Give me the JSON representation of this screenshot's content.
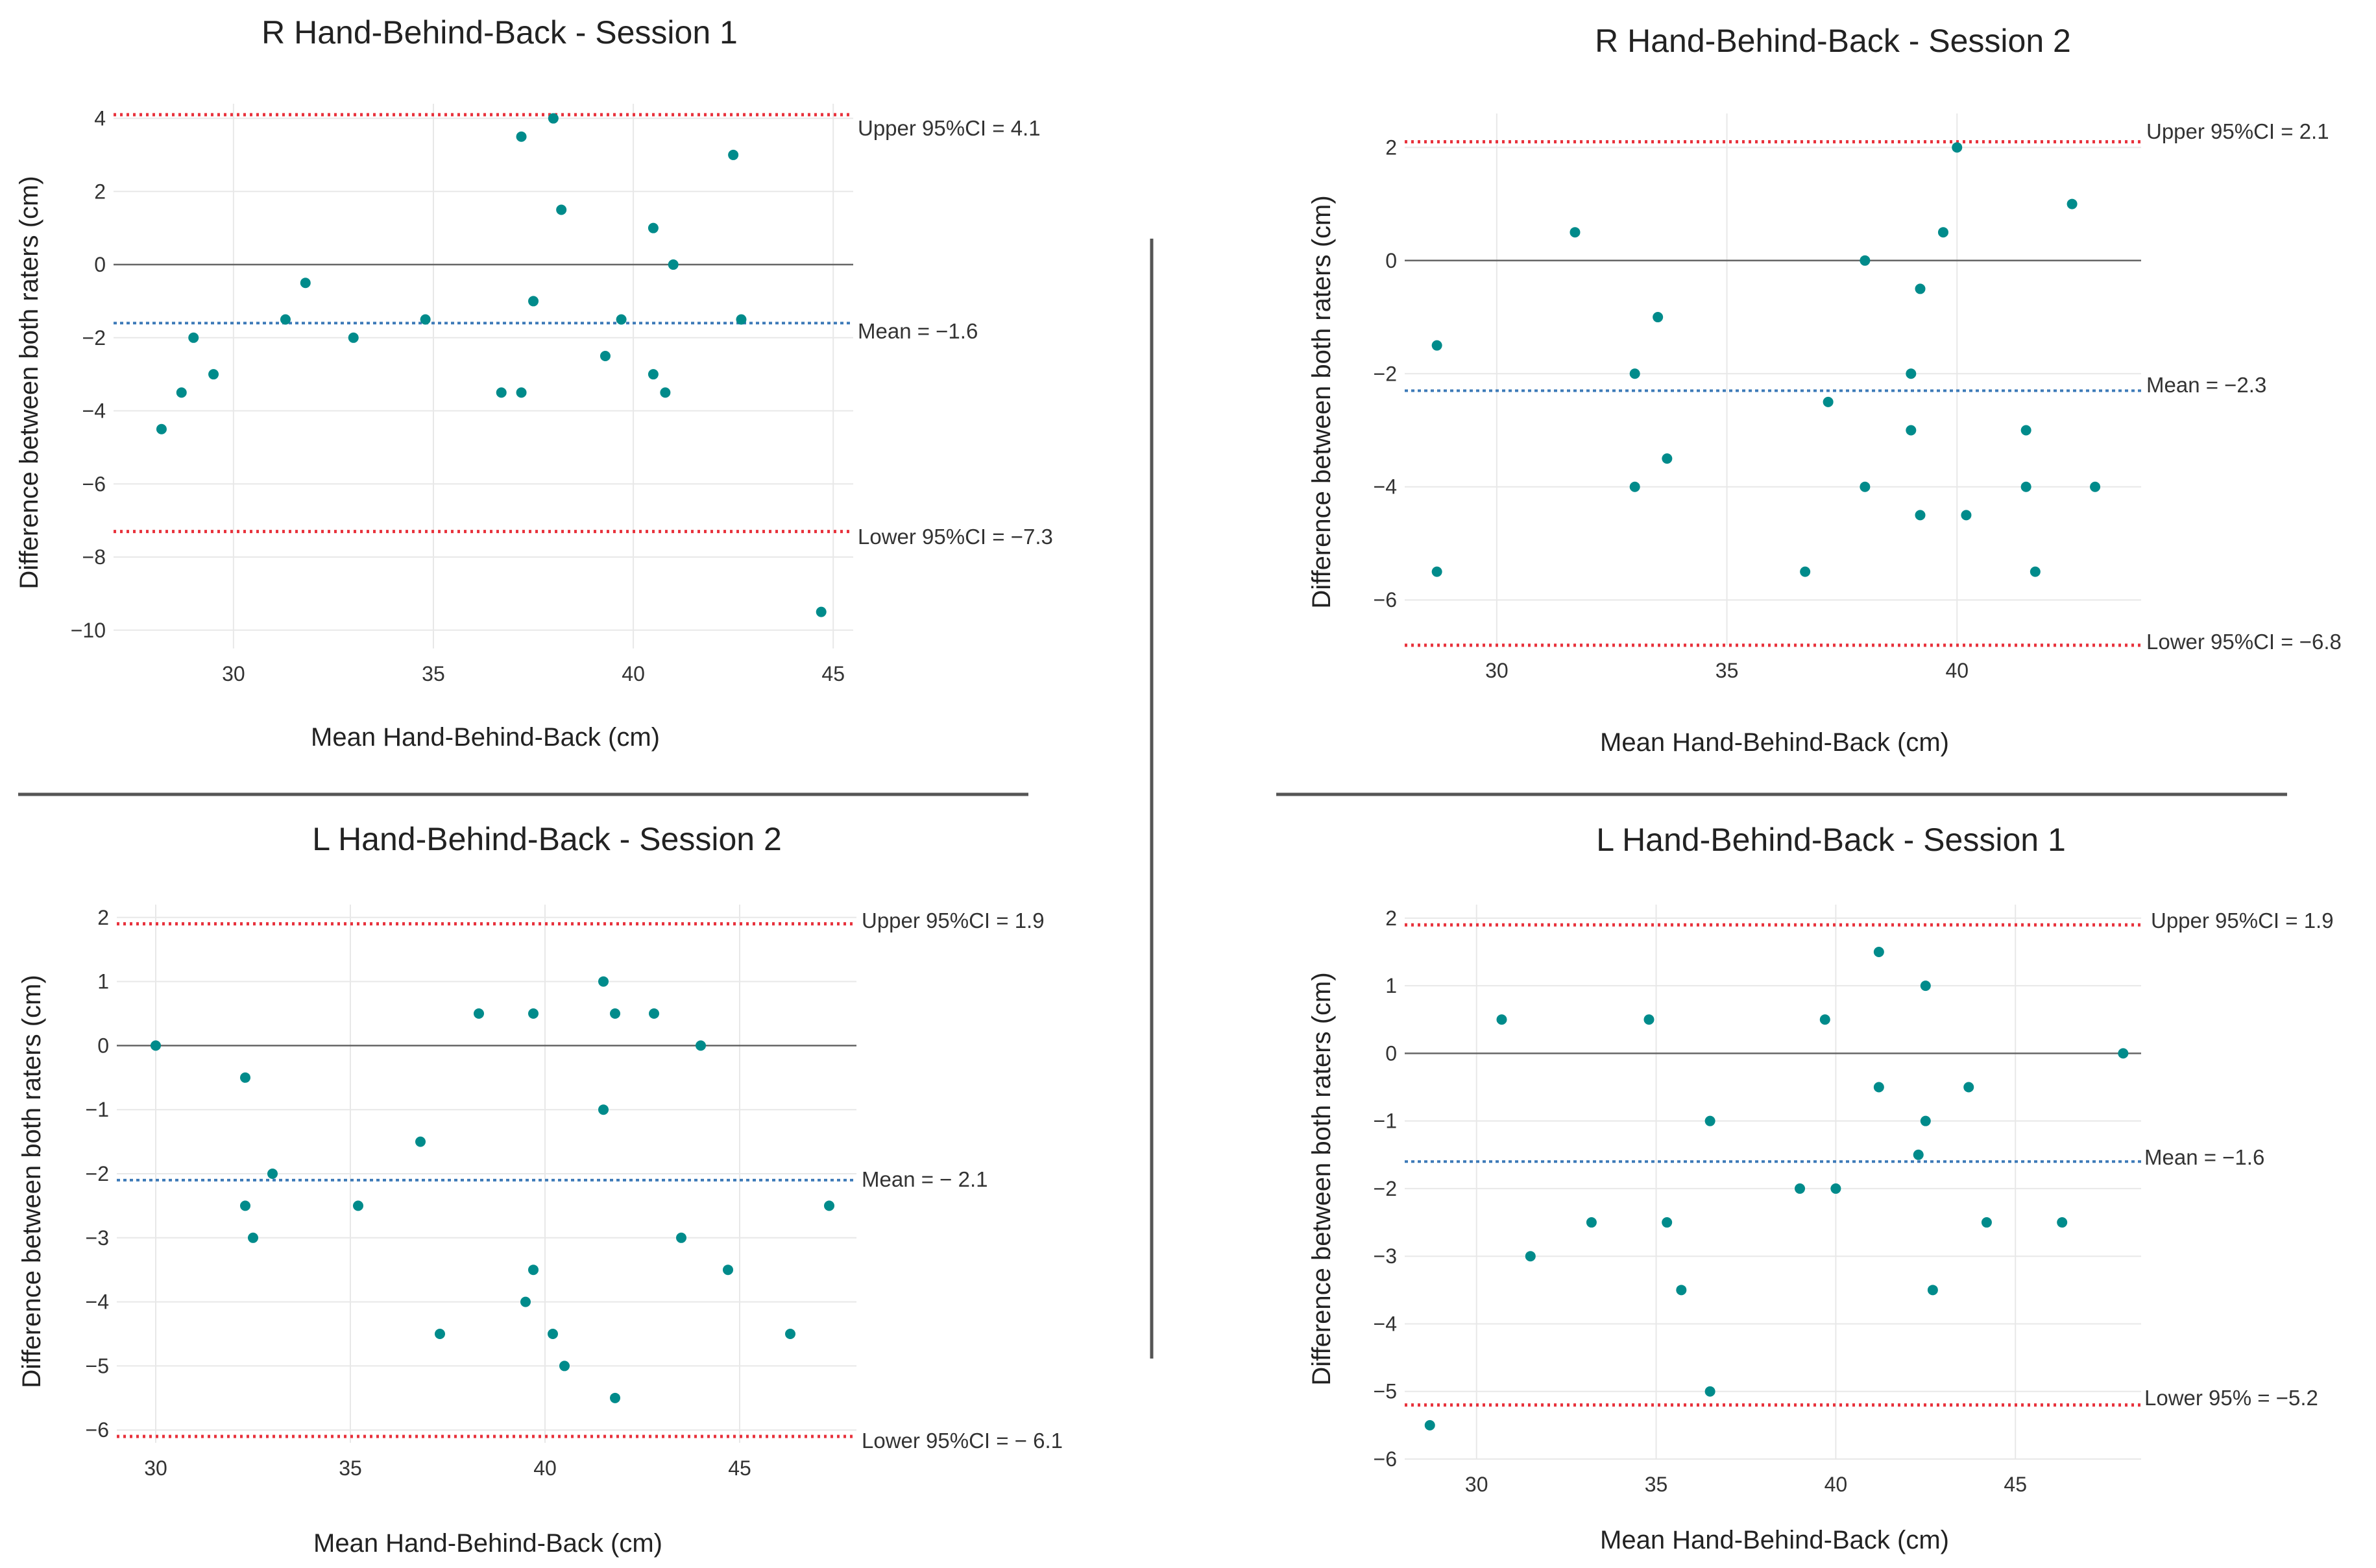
{
  "charts": {
    "rs1": {
      "title": "R Hand-Behind-Back - Session 1",
      "xlabel": "Mean Hand-Behind-Back (cm)",
      "ylabel": "Difference between both raters (cm)",
      "upper_label": "Upper 95%CI = 4.1",
      "mean_label": "Mean = −1.6",
      "lower_label": "Lower 95%CI = −7.3"
    },
    "rs2": {
      "title": "R Hand-Behind-Back - Session 2",
      "xlabel": "Mean Hand-Behind-Back (cm)",
      "ylabel": "Difference between both raters (cm)",
      "upper_label": "Upper 95%CI = 2.1",
      "mean_label": "Mean = −2.3",
      "lower_label": "Lower 95%CI = −6.8"
    },
    "ls2": {
      "title": "L Hand-Behind-Back - Session 2",
      "xlabel": "Mean Hand-Behind-Back (cm)",
      "ylabel": "Difference between both raters (cm)",
      "upper_label": "Upper 95%CI = 1.9",
      "mean_label": "Mean = − 2.1",
      "lower_label": "Lower 95%CI = − 6.1"
    },
    "ls1": {
      "title": "L Hand-Behind-Back - Session 1",
      "xlabel": "Mean Hand-Behind-Back (cm)",
      "ylabel": "Difference between both raters (cm)",
      "upper_label": "Upper 95%CI = 1.9",
      "mean_label": "Mean = −1.6",
      "lower_label": "Lower 95% = −5.2"
    }
  },
  "colors": {
    "points": "#008B8B",
    "upper_lower": "#e8323c",
    "mean": "#3d7ab8",
    "zero": "#666666",
    "grid": "#e8e8e8"
  },
  "chart_data": [
    {
      "id": "rs1",
      "type": "scatter",
      "title": "R Hand-Behind-Back - Session 1",
      "xlabel": "Mean Hand-Behind-Back (cm)",
      "ylabel": "Difference between both raters (cm)",
      "xlim": [
        27,
        45.5
      ],
      "ylim": [
        -10.5,
        4.4
      ],
      "xticks": [
        30,
        35,
        40,
        45
      ],
      "yticks": [
        -10,
        -8,
        -6,
        -4,
        -2,
        0,
        2,
        4
      ],
      "reference_lines": {
        "upper": 4.1,
        "mean": -1.6,
        "lower": -7.3,
        "zero": 0
      },
      "grid": true,
      "points": [
        {
          "x": 28.2,
          "y": -4.5
        },
        {
          "x": 28.7,
          "y": -3.5
        },
        {
          "x": 29.0,
          "y": -2.0
        },
        {
          "x": 29.5,
          "y": -3.0
        },
        {
          "x": 31.3,
          "y": -1.5
        },
        {
          "x": 31.8,
          "y": -0.5
        },
        {
          "x": 33.0,
          "y": -2.0
        },
        {
          "x": 34.8,
          "y": -1.5
        },
        {
          "x": 36.7,
          "y": -3.5
        },
        {
          "x": 37.2,
          "y": 3.5
        },
        {
          "x": 37.2,
          "y": -3.5
        },
        {
          "x": 37.5,
          "y": -1.0
        },
        {
          "x": 38.0,
          "y": 4.0
        },
        {
          "x": 38.2,
          "y": 1.5
        },
        {
          "x": 39.3,
          "y": -2.5
        },
        {
          "x": 39.7,
          "y": -1.5
        },
        {
          "x": 40.5,
          "y": 1.0
        },
        {
          "x": 40.5,
          "y": -3.0
        },
        {
          "x": 40.8,
          "y": -3.5
        },
        {
          "x": 41.0,
          "y": 0.0
        },
        {
          "x": 42.5,
          "y": 3.0
        },
        {
          "x": 42.7,
          "y": -1.5
        },
        {
          "x": 44.7,
          "y": -9.5
        }
      ]
    },
    {
      "id": "rs2",
      "type": "scatter",
      "title": "R Hand-Behind-Back - Session 2",
      "xlabel": "Mean Hand-Behind-Back (cm)",
      "ylabel": "Difference between both raters (cm)",
      "xlim": [
        28,
        44
      ],
      "ylim": [
        -6.8,
        2.6
      ],
      "xticks": [
        30,
        35,
        40
      ],
      "yticks": [
        -6,
        -4,
        -2,
        0,
        2
      ],
      "reference_lines": {
        "upper": 2.1,
        "mean": -2.3,
        "lower": -6.8,
        "zero": 0
      },
      "grid": true,
      "points": [
        {
          "x": 28.7,
          "y": -1.5
        },
        {
          "x": 28.7,
          "y": -5.5
        },
        {
          "x": 31.7,
          "y": 0.5
        },
        {
          "x": 33.0,
          "y": -2.0
        },
        {
          "x": 33.0,
          "y": -4.0
        },
        {
          "x": 33.5,
          "y": -1.0
        },
        {
          "x": 33.7,
          "y": -3.5
        },
        {
          "x": 36.7,
          "y": -5.5
        },
        {
          "x": 37.2,
          "y": -2.5
        },
        {
          "x": 38.0,
          "y": 0.0
        },
        {
          "x": 38.0,
          "y": -4.0
        },
        {
          "x": 39.0,
          "y": -2.0
        },
        {
          "x": 39.0,
          "y": -3.0
        },
        {
          "x": 39.2,
          "y": -0.5
        },
        {
          "x": 39.2,
          "y": -4.5
        },
        {
          "x": 39.7,
          "y": 0.5
        },
        {
          "x": 40.0,
          "y": 2.0
        },
        {
          "x": 40.2,
          "y": -4.5
        },
        {
          "x": 41.5,
          "y": -3.0
        },
        {
          "x": 41.5,
          "y": -4.0
        },
        {
          "x": 41.7,
          "y": -5.5
        },
        {
          "x": 42.5,
          "y": 1.0
        },
        {
          "x": 43.0,
          "y": -4.0
        }
      ]
    },
    {
      "id": "ls2",
      "type": "scatter",
      "title": "L Hand-Behind-Back - Session 2",
      "xlabel": "Mean Hand-Behind-Back (cm)",
      "ylabel": "Difference between both raters (cm)",
      "xlim": [
        29,
        48
      ],
      "ylim": [
        -6.2,
        2.2
      ],
      "xticks": [
        30,
        35,
        40,
        45
      ],
      "yticks": [
        -6,
        -5,
        -4,
        -3,
        -2,
        -1,
        0,
        1,
        2
      ],
      "reference_lines": {
        "upper": 1.9,
        "mean": -2.1,
        "lower": -6.1,
        "zero": 0
      },
      "grid": true,
      "points": [
        {
          "x": 30.0,
          "y": 0.0
        },
        {
          "x": 32.3,
          "y": -0.5
        },
        {
          "x": 32.3,
          "y": -2.5
        },
        {
          "x": 32.5,
          "y": -3.0
        },
        {
          "x": 33.0,
          "y": -2.0
        },
        {
          "x": 35.2,
          "y": -2.5
        },
        {
          "x": 36.8,
          "y": -1.5
        },
        {
          "x": 37.3,
          "y": -4.5
        },
        {
          "x": 38.3,
          "y": 0.5
        },
        {
          "x": 39.5,
          "y": -4.0
        },
        {
          "x": 39.7,
          "y": 0.5
        },
        {
          "x": 39.7,
          "y": -3.5
        },
        {
          "x": 40.2,
          "y": -4.5
        },
        {
          "x": 40.5,
          "y": -5.0
        },
        {
          "x": 41.5,
          "y": 1.0
        },
        {
          "x": 41.5,
          "y": -1.0
        },
        {
          "x": 41.8,
          "y": 0.5
        },
        {
          "x": 41.8,
          "y": -5.5
        },
        {
          "x": 42.8,
          "y": 0.5
        },
        {
          "x": 43.5,
          "y": -3.0
        },
        {
          "x": 44.0,
          "y": 0.0
        },
        {
          "x": 44.7,
          "y": -3.5
        },
        {
          "x": 46.3,
          "y": -4.5
        },
        {
          "x": 47.3,
          "y": -2.5
        }
      ]
    },
    {
      "id": "ls1",
      "type": "scatter",
      "title": "L Hand-Behind-Back - Session 1",
      "xlabel": "Mean Hand-Behind-Back (cm)",
      "ylabel": "Difference between both raters (cm)",
      "xlim": [
        28,
        48.5
      ],
      "ylim": [
        -6,
        2.2
      ],
      "xticks": [
        30,
        35,
        40,
        45
      ],
      "yticks": [
        -6,
        -5,
        -4,
        -3,
        -2,
        -1,
        0,
        1,
        2
      ],
      "reference_lines": {
        "upper": 1.9,
        "mean": -1.6,
        "lower": -5.2,
        "zero": 0
      },
      "grid": true,
      "points": [
        {
          "x": 28.7,
          "y": -5.5
        },
        {
          "x": 30.7,
          "y": 0.5
        },
        {
          "x": 31.5,
          "y": -3.0
        },
        {
          "x": 33.2,
          "y": -2.5
        },
        {
          "x": 34.8,
          "y": 0.5
        },
        {
          "x": 35.3,
          "y": -2.5
        },
        {
          "x": 35.7,
          "y": -3.5
        },
        {
          "x": 36.5,
          "y": -1.0
        },
        {
          "x": 36.5,
          "y": -5.0
        },
        {
          "x": 39.0,
          "y": -2.0
        },
        {
          "x": 39.7,
          "y": 0.5
        },
        {
          "x": 40.0,
          "y": -2.0
        },
        {
          "x": 41.2,
          "y": 1.5
        },
        {
          "x": 41.2,
          "y": -0.5
        },
        {
          "x": 42.3,
          "y": -1.5
        },
        {
          "x": 42.5,
          "y": 1.0
        },
        {
          "x": 42.5,
          "y": -1.0
        },
        {
          "x": 42.7,
          "y": -3.5
        },
        {
          "x": 43.7,
          "y": -0.5
        },
        {
          "x": 44.2,
          "y": -2.5
        },
        {
          "x": 46.3,
          "y": -2.5
        },
        {
          "x": 48.0,
          "y": 0.0
        }
      ]
    }
  ]
}
